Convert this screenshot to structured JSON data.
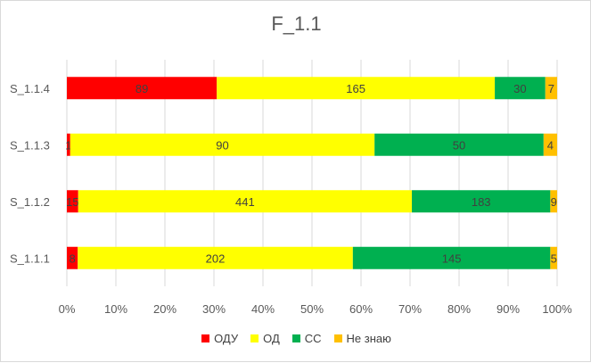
{
  "chart_data": {
    "type": "bar",
    "orientation": "horizontal",
    "stacked": "percent",
    "title": "F_1.1",
    "categories": [
      "S_1.1.4",
      "S_1.1.3",
      "S_1.1.2",
      "S_1.1.1"
    ],
    "series": [
      {
        "name": "ОДУ",
        "color": "#ff0000",
        "values": [
          89,
          1,
          15,
          8
        ]
      },
      {
        "name": "ОД",
        "color": "#ffff00",
        "values": [
          165,
          90,
          441,
          202
        ]
      },
      {
        "name": "СС",
        "color": "#00b050",
        "values": [
          30,
          50,
          183,
          145
        ]
      },
      {
        "name": "Не знаю",
        "color": "#ffc000",
        "values": [
          7,
          4,
          9,
          5
        ]
      }
    ],
    "x_ticks": [
      "0%",
      "10%",
      "20%",
      "30%",
      "40%",
      "50%",
      "60%",
      "70%",
      "80%",
      "90%",
      "100%"
    ],
    "xlim": [
      0,
      100
    ],
    "grid": true,
    "legend_position": "bottom"
  }
}
